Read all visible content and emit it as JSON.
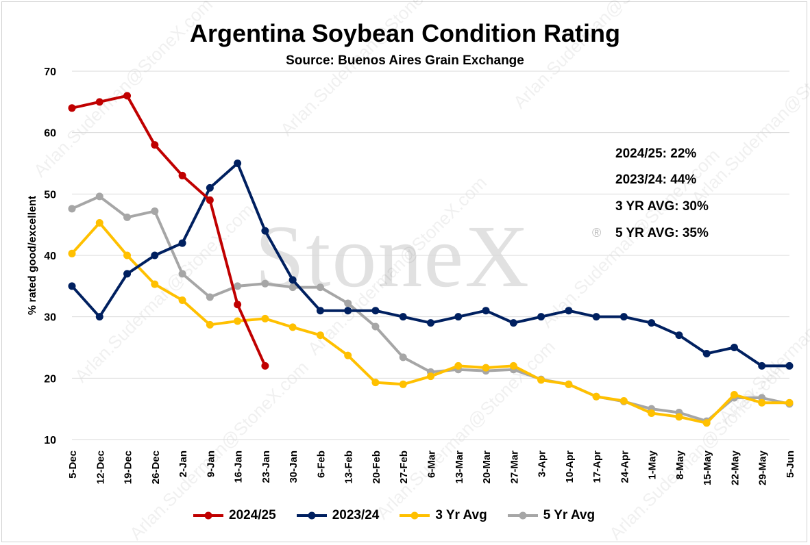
{
  "watermark": {
    "text": "StoneX",
    "mark": "®",
    "repeat_text": "Arlan.Suderman@StoneX.com"
  },
  "chart_data": {
    "type": "line",
    "title": "Argentina Soybean Condition Rating",
    "subtitle": "Source: Buenos Aires Grain Exchange",
    "ylabel": "% rated good/excellent",
    "xlabel": "",
    "ylim": [
      10,
      70
    ],
    "yticks": [
      10,
      20,
      30,
      40,
      50,
      60,
      70
    ],
    "grid": true,
    "legend_position": "bottom",
    "categories": [
      "5-Dec",
      "12-Dec",
      "19-Dec",
      "26-Dec",
      "2-Jan",
      "9-Jan",
      "16-Jan",
      "23-Jan",
      "30-Jan",
      "6-Feb",
      "13-Feb",
      "20-Feb",
      "27-Feb",
      "6-Mar",
      "13-Mar",
      "20-Mar",
      "27-Mar",
      "3-Apr",
      "10-Apr",
      "17-Apr",
      "24-Apr",
      "1-May",
      "8-May",
      "15-May",
      "22-May",
      "29-May",
      "5-Jun"
    ],
    "series": [
      {
        "name": "2024/25",
        "color": "#c00000",
        "values": [
          64,
          65,
          66,
          58,
          53,
          49,
          32,
          22,
          null,
          null,
          null,
          null,
          null,
          null,
          null,
          null,
          null,
          null,
          null,
          null,
          null,
          null,
          null,
          null,
          null,
          null,
          null
        ]
      },
      {
        "name": "2023/24",
        "color": "#002060",
        "values": [
          35,
          30,
          37,
          40,
          42,
          51,
          55,
          44,
          36,
          31,
          31,
          31,
          30,
          29,
          30,
          31,
          29,
          30,
          31,
          30,
          30,
          29,
          27,
          24,
          25,
          22,
          22
        ]
      },
      {
        "name": "3 Yr Avg",
        "color": "#ffc000",
        "values": [
          40.3,
          45.3,
          40,
          35.3,
          32.7,
          28.7,
          29.3,
          29.7,
          28.3,
          27,
          23.7,
          19.3,
          19,
          20.3,
          22,
          21.7,
          22,
          19.7,
          19,
          17,
          16.3,
          14.3,
          13.7,
          12.7,
          17.3,
          16,
          16
        ]
      },
      {
        "name": "5 Yr Avg",
        "color": "#a6a6a6",
        "values": [
          47.6,
          49.6,
          46.2,
          47.2,
          37,
          33.2,
          35,
          35.4,
          34.8,
          34.8,
          32.2,
          28.4,
          23.4,
          21,
          21.4,
          21.2,
          21.4,
          19.8,
          19,
          17,
          16.2,
          15,
          14.4,
          13,
          16.8,
          16.8,
          15.8
        ]
      }
    ],
    "annotations": [
      "2024/25: 22%",
      "2023/24: 44%",
      "3 YR AVG: 30%",
      "5 YR AVG: 35%"
    ]
  }
}
